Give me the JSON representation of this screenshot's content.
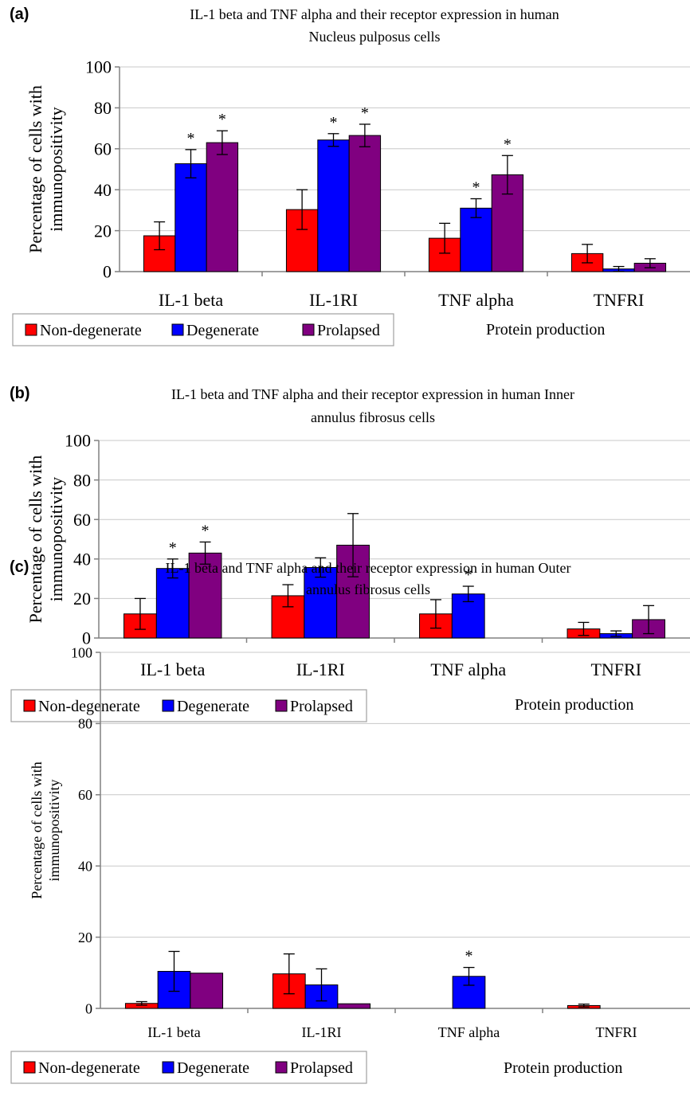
{
  "colors": {
    "non_degenerate": "#ff0000",
    "degenerate": "#0000ff",
    "prolapsed": "#800080",
    "grid": "#c8c8c8",
    "axis": "#808080"
  },
  "chart_data": [
    {
      "type": "bar",
      "panel_label": "(a)",
      "title": "IL-1 beta and TNF alpha and their receptor expression in human Nucleus pulposus cells",
      "title_lines": [
        "IL-1 beta and TNF alpha and their receptor expression in human",
        "Nucleus pulposus cells"
      ],
      "ylabel": "Percentage of cells with immunopositivity",
      "ylabel_lines": [
        "Percentage of cells with",
        "immunopositivity"
      ],
      "xlabel": "Protein production",
      "ylim": [
        0,
        100
      ],
      "yticks": [
        "0",
        "20",
        "40",
        "60",
        "80",
        "100"
      ],
      "grid": true,
      "legend_position": "bottom-left",
      "categories": [
        "IL-1 beta",
        "IL-1RI",
        "TNF alpha",
        "TNFRI"
      ],
      "series": [
        {
          "name": "Non-degenerate",
          "values": [
            17.5,
            30.3,
            16.3,
            8.8
          ],
          "errors": [
            6.8,
            9.7,
            7.3,
            4.5
          ],
          "significant": [
            false,
            false,
            false,
            false
          ]
        },
        {
          "name": "Degenerate",
          "values": [
            52.7,
            64.3,
            31.0,
            1.3
          ],
          "errors": [
            6.9,
            3.1,
            4.6,
            1.2
          ],
          "significant": [
            true,
            true,
            true,
            false
          ]
        },
        {
          "name": "Prolapsed",
          "values": [
            63.0,
            66.5,
            47.3,
            4.1
          ],
          "errors": [
            5.8,
            5.5,
            9.4,
            2.2
          ],
          "significant": [
            true,
            true,
            true,
            false
          ]
        }
      ]
    },
    {
      "type": "bar",
      "panel_label": "(b)",
      "title": "IL-1 beta and TNF alpha and their receptor expression in human Inner annulus fibrosus cells",
      "title_lines": [
        "IL-1 beta and TNF alpha and their receptor expression in human Inner",
        "annulus fibrosus cells"
      ],
      "ylabel": "Percentage of cells with immunopositivity",
      "ylabel_lines": [
        "Percentage of cells with",
        "immunopositivity"
      ],
      "xlabel": "Protein production",
      "ylim": [
        0,
        100
      ],
      "yticks": [
        "0",
        "20",
        "40",
        "60",
        "80",
        "100"
      ],
      "grid": true,
      "legend_position": "bottom-left",
      "categories": [
        "IL-1 beta",
        "IL-1RI",
        "TNF alpha",
        "TNFRI"
      ],
      "series": [
        {
          "name": "Non-degenerate",
          "values": [
            12.2,
            21.4,
            12.2,
            4.6
          ],
          "errors": [
            7.8,
            5.6,
            7.2,
            3.3
          ],
          "significant": [
            false,
            false,
            false,
            false
          ]
        },
        {
          "name": "Degenerate",
          "values": [
            35.2,
            35.7,
            22.3,
            2.2
          ],
          "errors": [
            4.8,
            4.9,
            3.9,
            1.4
          ],
          "significant": [
            true,
            false,
            true,
            false
          ]
        },
        {
          "name": "Prolapsed",
          "values": [
            43.0,
            47.0,
            0.0,
            9.3
          ],
          "errors": [
            5.6,
            16.0,
            0.0,
            7.1
          ],
          "significant": [
            true,
            false,
            false,
            false
          ]
        }
      ]
    },
    {
      "type": "bar",
      "panel_label": "(c)",
      "title": "IL-1 beta and TNF alpha and their receptor expression in human Outer annulus fibrosus cells",
      "title_lines": [
        "IL-1 beta and TNF alpha and their receptor expression in human Outer",
        "annulus fibrosus cells"
      ],
      "ylabel": "Percentage of cells with immunopositivity",
      "ylabel_lines": [
        "Percentage of cells with",
        "immunopositivity"
      ],
      "xlabel": "Protein production",
      "ylim": [
        0,
        100
      ],
      "yticks": [
        "0",
        "20",
        "40",
        "60",
        "80",
        "100"
      ],
      "grid": true,
      "legend_position": "bottom-left",
      "categories": [
        "IL-1 beta",
        "IL-1RI",
        "TNF alpha",
        "TNFRI"
      ],
      "series": [
        {
          "name": "Non-degenerate",
          "values": [
            1.4,
            9.7,
            0.0,
            0.8
          ],
          "errors": [
            0.5,
            5.6,
            0.0,
            0.4
          ],
          "significant": [
            false,
            false,
            false,
            false
          ]
        },
        {
          "name": "Degenerate",
          "values": [
            10.4,
            6.6,
            9.0,
            0.0
          ],
          "errors": [
            5.6,
            4.5,
            2.5,
            0.0
          ],
          "significant": [
            false,
            false,
            true,
            false
          ]
        },
        {
          "name": "Prolapsed",
          "values": [
            9.9,
            1.3,
            0.0,
            0.0
          ],
          "errors": [
            0.0,
            0.0,
            0.0,
            0.0
          ],
          "significant": [
            false,
            false,
            false,
            false
          ]
        }
      ]
    }
  ]
}
